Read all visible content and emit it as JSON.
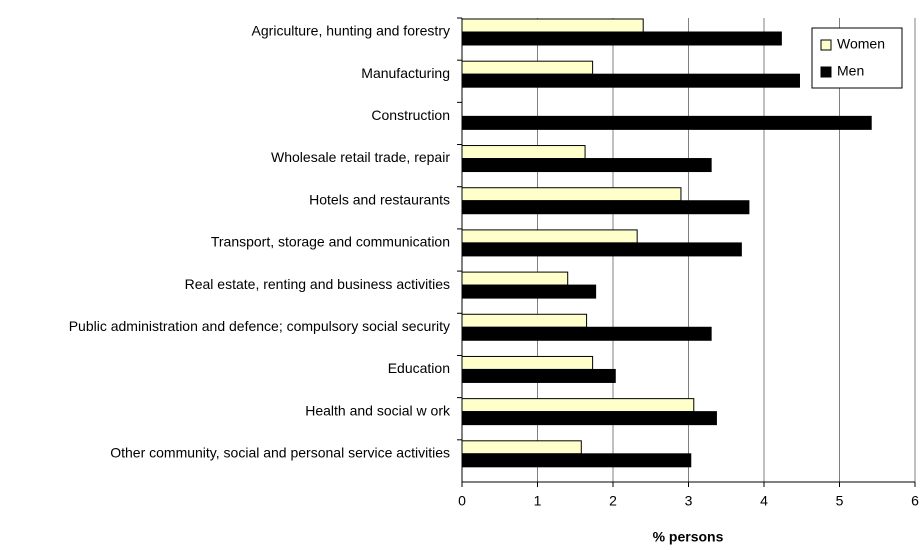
{
  "chart_data": {
    "type": "bar",
    "orientation": "horizontal",
    "x_label": "% persons",
    "categories": [
      "Agriculture, hunting and forestry",
      "Manufacturing",
      "Construction",
      "Wholesale retail trade, repair",
      "Hotels and restaurants",
      "Transport, storage and communication",
      "Real estate, renting and business activities",
      "Public administration and defence; compulsory social security",
      "Education",
      "Health and social w ork",
      "Other community, social and personal service activities"
    ],
    "series": [
      {
        "name": "Women",
        "color": "#ffffcc",
        "values": [
          2.4,
          1.73,
          0,
          1.63,
          2.9,
          2.32,
          1.4,
          1.65,
          1.73,
          3.07,
          1.58
        ]
      },
      {
        "name": "Men",
        "color": "#000000",
        "values": [
          4.23,
          4.47,
          5.42,
          3.3,
          3.8,
          3.7,
          1.77,
          3.3,
          2.03,
          3.37,
          3.03
        ]
      }
    ],
    "xlim": [
      0,
      6
    ],
    "xticks": [
      0,
      1,
      2,
      3,
      4,
      5,
      6
    ],
    "grid": true,
    "legend": "top-right"
  }
}
